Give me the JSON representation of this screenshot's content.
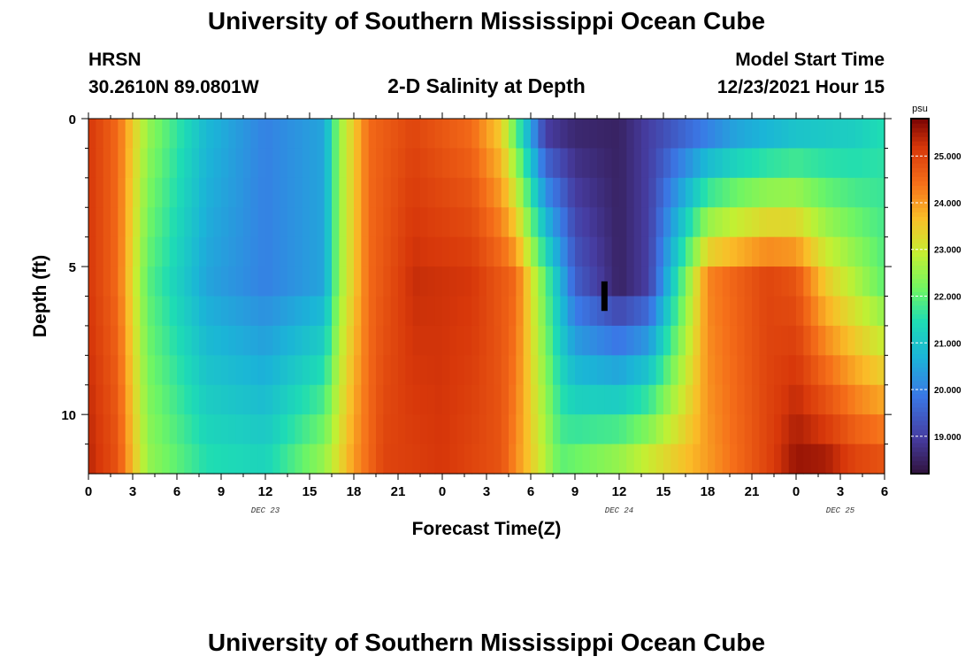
{
  "page": {
    "title": "University of Southern Mississippi Ocean Cube",
    "footer_title": "University of Southern Mississippi Ocean Cube",
    "station": "HRSN",
    "coords": "30.2610N  89.0801W",
    "plot_title": "2-D Salinity at Depth",
    "model_start_label": "Model Start Time",
    "model_start_value": "12/23/2021 Hour 15"
  },
  "chart_data": {
    "type": "heatmap",
    "title": "2-D Salinity at Depth",
    "xlabel": "Forecast Time(Z)",
    "ylabel": "Depth (ft)",
    "xlim": [
      0,
      54
    ],
    "ylim": [
      0,
      12
    ],
    "x_ticks": [
      0,
      3,
      6,
      9,
      12,
      15,
      18,
      21,
      24,
      27,
      30,
      33,
      36,
      39,
      42,
      45,
      48,
      51,
      54
    ],
    "x_tick_labels": [
      "0",
      "3",
      "6",
      "9",
      "12",
      "15",
      "18",
      "21",
      "0",
      "3",
      "6",
      "9",
      "12",
      "15",
      "18",
      "21",
      "0",
      "3",
      "6"
    ],
    "x_minor_ticks": [
      1.5,
      4.5,
      7.5,
      10.5,
      13.5,
      16.5,
      19.5,
      22.5,
      25.5,
      28.5,
      31.5,
      34.5,
      37.5,
      40.5,
      43.5,
      46.5,
      49.5,
      52.5
    ],
    "date_labels": [
      {
        "x": 12,
        "text": "DEC 23"
      },
      {
        "x": 36,
        "text": "DEC 24"
      },
      {
        "x": 51,
        "text": "DEC 25"
      }
    ],
    "y_ticks": [
      0,
      5,
      10
    ],
    "y_tick_labels": [
      "0",
      "5",
      "10"
    ],
    "y_minor_ticks": [
      1,
      2,
      3,
      4,
      6,
      7,
      8,
      9,
      11
    ],
    "colorbar": {
      "unit": "psu",
      "min": 18.2,
      "max": 25.8,
      "ticks": [
        25,
        24,
        23,
        22,
        21,
        20,
        19
      ],
      "tick_labels": [
        "25.000",
        "24.000",
        "23.000",
        "22.000",
        "21.000",
        "20.000",
        "19.000"
      ]
    },
    "grid": {
      "x_step_hours": 0.5,
      "depth_layers": 12,
      "depth_layer_bottoms": [
        1,
        2,
        3,
        4,
        5,
        6,
        7,
        8,
        9,
        10,
        11,
        12
      ],
      "cell_resolution": "0.5 h x 1 ft"
    },
    "series": [
      {
        "name": "surface_layer_0-1ft",
        "hours": [
          0,
          2,
          4,
          8,
          12,
          16,
          17,
          19,
          22,
          26,
          28,
          30,
          31,
          33,
          36,
          40,
          44,
          48,
          52,
          54
        ],
        "psu": [
          25.2,
          24.5,
          22.5,
          20.8,
          20.0,
          20.5,
          22.5,
          24.5,
          25.0,
          24.5,
          23.5,
          20.5,
          19.0,
          18.6,
          18.5,
          19.5,
          20.5,
          21.0,
          21.2,
          21.5
        ]
      },
      {
        "name": "mid_layer_5-6ft",
        "hours": [
          0,
          2,
          4,
          8,
          12,
          16,
          17,
          19,
          22,
          26,
          29,
          31,
          33,
          36,
          38,
          42,
          46,
          48,
          50,
          54
        ],
        "psu": [
          25.2,
          24.5,
          22.0,
          20.5,
          20.0,
          20.5,
          22.5,
          24.5,
          25.3,
          25.2,
          24.5,
          22.0,
          19.5,
          18.5,
          19.0,
          24.2,
          25.0,
          24.8,
          23.5,
          22.0
        ]
      },
      {
        "name": "bottom_layer_11-12ft",
        "hours": [
          0,
          2,
          4,
          8,
          12,
          16,
          18,
          20,
          24,
          28,
          30,
          32,
          36,
          42,
          46,
          48,
          50,
          52,
          54
        ],
        "psu": [
          25.4,
          24.8,
          22.5,
          21.5,
          21.3,
          22.5,
          24.0,
          25.0,
          25.2,
          24.8,
          23.5,
          22.0,
          22.5,
          24.0,
          25.0,
          25.6,
          25.5,
          25.0,
          24.8
        ]
      }
    ],
    "annotations": [
      {
        "type": "marker",
        "shape": "bar",
        "x_hour": 35,
        "depth_ft": [
          5.5,
          6.5
        ],
        "color": "#000000"
      }
    ]
  }
}
